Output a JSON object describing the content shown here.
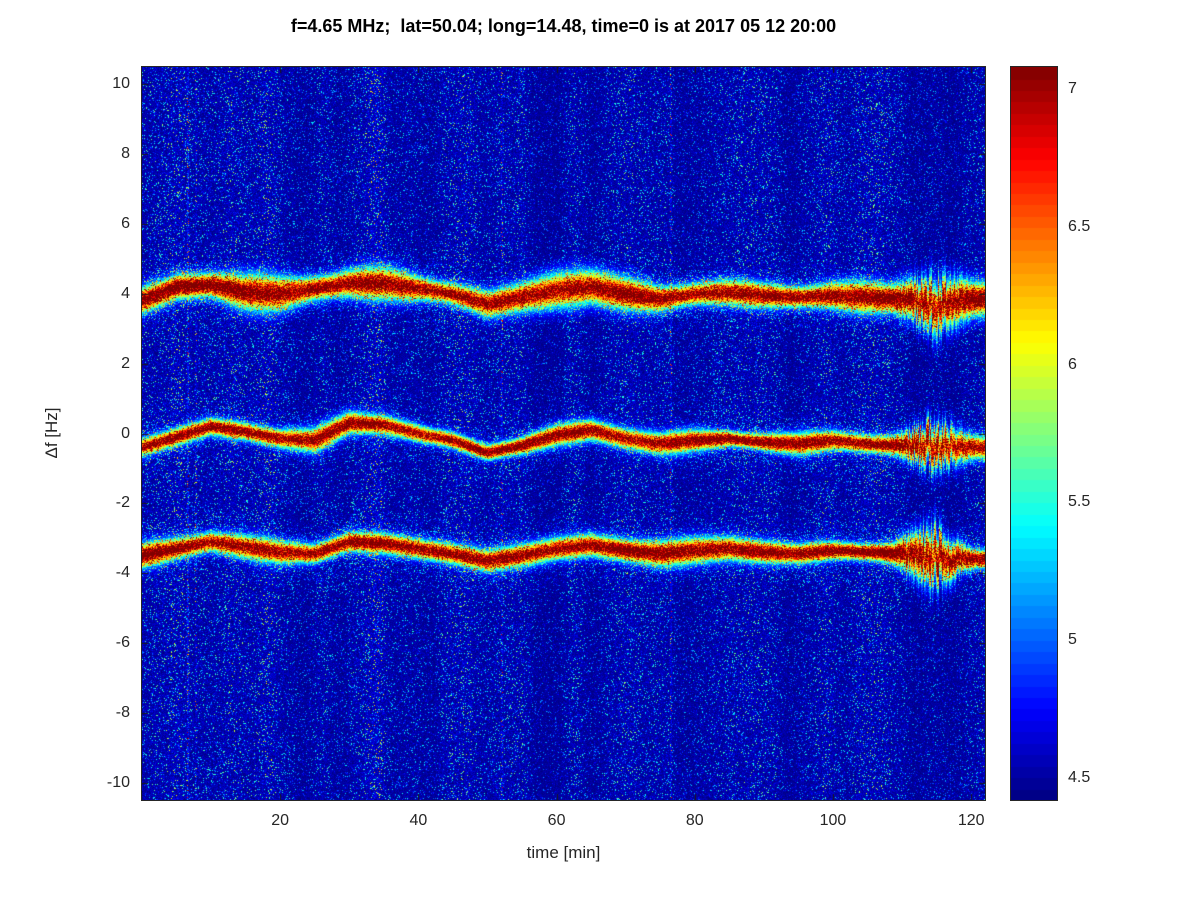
{
  "chart_data": {
    "type": "heatmap",
    "title": "f=4.65 MHz;  lat=50.04; long=14.48, time=0 is at 2017 05 12 20:00",
    "xlabel": "time [min]",
    "ylabel": "Δf [Hz]",
    "xlim": [
      0,
      122
    ],
    "ylim": [
      -10.5,
      10.5
    ],
    "x_ticks": [
      20,
      40,
      60,
      80,
      100,
      120
    ],
    "y_ticks": [
      10,
      8,
      6,
      4,
      2,
      0,
      -2,
      -4,
      -6,
      -8,
      -10
    ],
    "grid": false,
    "legend": "none",
    "colorbar": {
      "position": "right",
      "colormap": "jet",
      "range": [
        4.42,
        7.08
      ],
      "ticks": [
        4.5,
        5,
        5.5,
        6,
        6.5,
        7
      ]
    },
    "background_level": 4.45,
    "background_description": "dark blue speckled noise with faint vertical streaks",
    "disturbed_interval_min": [
      109,
      120
    ],
    "bands": [
      {
        "name": "upper Doppler trace (~+4 Hz)",
        "x_start": 0,
        "x_step": 5,
        "center_hz": [
          3.8,
          4.2,
          4.25,
          4.05,
          4.0,
          4.15,
          4.3,
          4.3,
          4.15,
          4.0,
          3.7,
          3.9,
          4.1,
          4.2,
          4.0,
          3.85,
          4.0,
          4.05,
          3.95,
          3.9,
          3.95,
          3.9,
          3.85,
          3.7,
          3.85
        ],
        "peak_level": 7.05,
        "fringe": "wide yellow-green halo"
      },
      {
        "name": "center Doppler trace (~0 Hz)",
        "x_start": 0,
        "x_step": 5,
        "center_hz": [
          -0.4,
          -0.1,
          0.2,
          0.05,
          -0.15,
          -0.2,
          0.3,
          0.25,
          0.0,
          -0.2,
          -0.55,
          -0.35,
          -0.05,
          0.1,
          -0.15,
          -0.3,
          -0.2,
          -0.15,
          -0.25,
          -0.3,
          -0.2,
          -0.3,
          -0.35,
          -0.3,
          -0.4
        ],
        "peak_level": 7.0,
        "fringe": "narrow orange halo"
      },
      {
        "name": "lower Doppler trace (~-3.3 Hz)",
        "x_start": 0,
        "x_step": 5,
        "center_hz": [
          -3.5,
          -3.3,
          -3.1,
          -3.25,
          -3.4,
          -3.45,
          -3.1,
          -3.15,
          -3.3,
          -3.45,
          -3.65,
          -3.5,
          -3.3,
          -3.2,
          -3.35,
          -3.45,
          -3.35,
          -3.3,
          -3.4,
          -3.45,
          -3.35,
          -3.4,
          -3.45,
          -3.55,
          -3.6
        ],
        "peak_level": 7.0,
        "fringe": "narrow orange halo"
      }
    ]
  }
}
